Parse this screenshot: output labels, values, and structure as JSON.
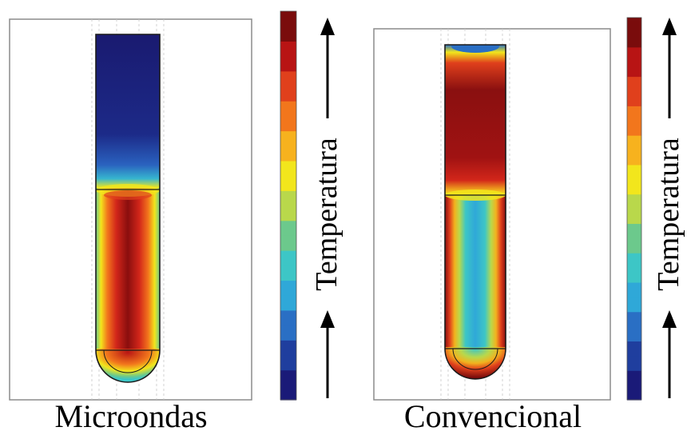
{
  "panels": [
    {
      "id": "microwave",
      "caption": "Microondas",
      "colorbar_label": "Temperatura",
      "heating": "volumetric"
    },
    {
      "id": "conventional",
      "caption": "Convencional",
      "colorbar_label": "Temperatura",
      "heating": "wall"
    }
  ],
  "colormap": [
    "#1a1a78",
    "#1f3e9e",
    "#2a6fc4",
    "#2fa8d8",
    "#3dc6c6",
    "#6cc98c",
    "#b9d84b",
    "#f2e61c",
    "#f7b21e",
    "#f2761c",
    "#e0401c",
    "#b81414",
    "#7a0c0c"
  ],
  "colors": {
    "frame": "#8c8c8c",
    "arrow": "#000000"
  }
}
